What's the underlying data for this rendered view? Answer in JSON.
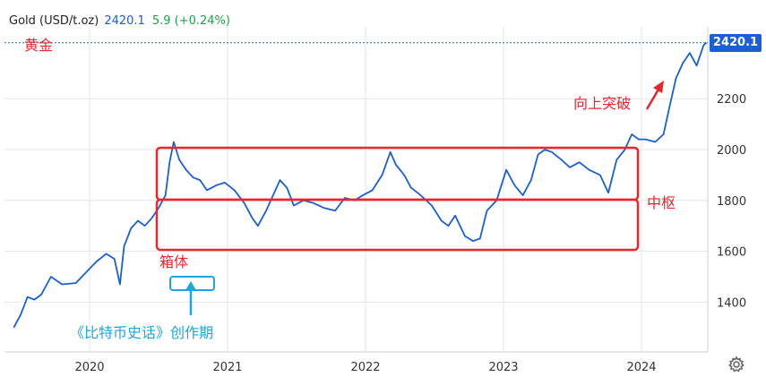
{
  "header": {
    "symbol_label": "Gold (USD/t.oz)",
    "price": "2420.1",
    "change": "5.9 (+0.24%)"
  },
  "colors": {
    "line": "#1a5fd6",
    "box": "#e8262b",
    "annotation_red": "#e8262b",
    "annotation_blue": "#1ba6e0",
    "grid": "#e6e6e6",
    "change": "#1aa34a"
  },
  "chart_data": {
    "type": "line",
    "title": "",
    "xlabel": "",
    "ylabel": "",
    "ylim": [
      1240,
      2500
    ],
    "y_ticks": [
      1400,
      1600,
      1800,
      2000,
      2200
    ],
    "x_ticks": [
      "2020",
      "2021",
      "2022",
      "2023",
      "2024"
    ],
    "last_value": "2420.1",
    "grid": "horizontal-and-vertical",
    "series": [
      {
        "values": [
          [
            2019.45,
            1300
          ],
          [
            2019.5,
            1350
          ],
          [
            2019.55,
            1420
          ],
          [
            2019.6,
            1410
          ],
          [
            2019.65,
            1430
          ],
          [
            2019.72,
            1500
          ],
          [
            2019.8,
            1470
          ],
          [
            2019.9,
            1475
          ],
          [
            2019.98,
            1520
          ],
          [
            2020.05,
            1560
          ],
          [
            2020.12,
            1590
          ],
          [
            2020.18,
            1570
          ],
          [
            2020.22,
            1470
          ],
          [
            2020.25,
            1620
          ],
          [
            2020.3,
            1690
          ],
          [
            2020.35,
            1720
          ],
          [
            2020.4,
            1700
          ],
          [
            2020.45,
            1730
          ],
          [
            2020.5,
            1770
          ],
          [
            2020.55,
            1820
          ],
          [
            2020.58,
            1950
          ],
          [
            2020.61,
            2030
          ],
          [
            2020.65,
            1960
          ],
          [
            2020.7,
            1920
          ],
          [
            2020.75,
            1890
          ],
          [
            2020.8,
            1880
          ],
          [
            2020.85,
            1840
          ],
          [
            2020.92,
            1860
          ],
          [
            2020.98,
            1870
          ],
          [
            2021.05,
            1840
          ],
          [
            2021.12,
            1790
          ],
          [
            2021.18,
            1730
          ],
          [
            2021.22,
            1700
          ],
          [
            2021.28,
            1760
          ],
          [
            2021.33,
            1820
          ],
          [
            2021.38,
            1880
          ],
          [
            2021.43,
            1850
          ],
          [
            2021.48,
            1780
          ],
          [
            2021.55,
            1800
          ],
          [
            2021.62,
            1790
          ],
          [
            2021.7,
            1770
          ],
          [
            2021.78,
            1760
          ],
          [
            2021.85,
            1810
          ],
          [
            2021.92,
            1800
          ],
          [
            2021.98,
            1820
          ],
          [
            2022.05,
            1840
          ],
          [
            2022.12,
            1900
          ],
          [
            2022.18,
            1990
          ],
          [
            2022.22,
            1940
          ],
          [
            2022.28,
            1900
          ],
          [
            2022.33,
            1850
          ],
          [
            2022.4,
            1820
          ],
          [
            2022.48,
            1780
          ],
          [
            2022.55,
            1720
          ],
          [
            2022.6,
            1700
          ],
          [
            2022.65,
            1740
          ],
          [
            2022.72,
            1660
          ],
          [
            2022.78,
            1640
          ],
          [
            2022.83,
            1650
          ],
          [
            2022.88,
            1760
          ],
          [
            2022.95,
            1800
          ],
          [
            2023.02,
            1920
          ],
          [
            2023.08,
            1860
          ],
          [
            2023.14,
            1820
          ],
          [
            2023.2,
            1880
          ],
          [
            2023.25,
            1980
          ],
          [
            2023.3,
            2000
          ],
          [
            2023.35,
            1990
          ],
          [
            2023.42,
            1960
          ],
          [
            2023.48,
            1930
          ],
          [
            2023.55,
            1950
          ],
          [
            2023.62,
            1920
          ],
          [
            2023.7,
            1900
          ],
          [
            2023.76,
            1830
          ],
          [
            2023.82,
            1960
          ],
          [
            2023.88,
            2000
          ],
          [
            2023.93,
            2060
          ],
          [
            2023.98,
            2040
          ],
          [
            2024.03,
            2040
          ],
          [
            2024.1,
            2030
          ],
          [
            2024.16,
            2060
          ],
          [
            2024.2,
            2160
          ],
          [
            2024.25,
            2280
          ],
          [
            2024.3,
            2340
          ],
          [
            2024.35,
            2380
          ],
          [
            2024.4,
            2330
          ],
          [
            2024.45,
            2410
          ],
          [
            2024.47,
            2420.1
          ]
        ]
      }
    ],
    "annotations": [
      {
        "text": "黄金",
        "color": "red",
        "position": "top-left"
      },
      {
        "text": "向上突破",
        "color": "red",
        "position": "upper-right"
      },
      {
        "text": "中枢",
        "color": "red",
        "position": "right-of-lower-box"
      },
      {
        "text": "箱体",
        "color": "red",
        "position": "below-lower-box"
      },
      {
        "text": "《比特币史话》创作期",
        "color": "blue",
        "position": "bottom-left"
      }
    ]
  }
}
